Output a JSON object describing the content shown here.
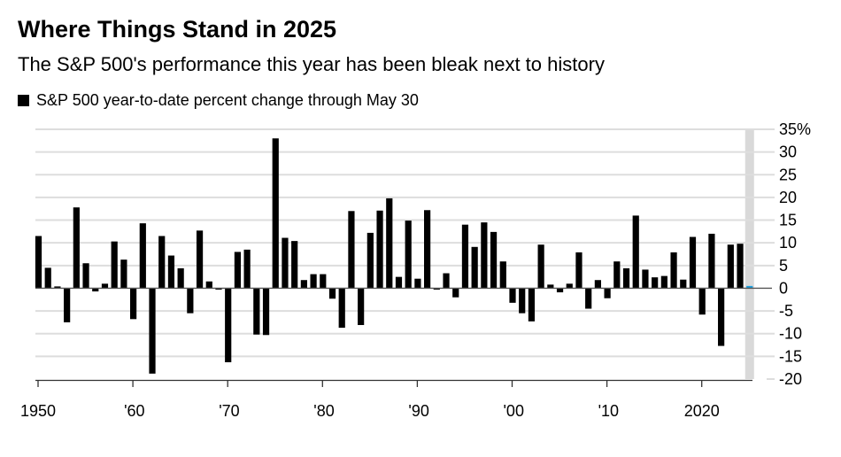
{
  "chart_data": {
    "type": "bar",
    "title": "Where Things Stand in 2025",
    "subtitle": "The S&P 500's performance this year has been bleak next to history",
    "legend": [
      {
        "label": "S&P 500 year-to-date percent change through May 30",
        "color": "#000000"
      }
    ],
    "legend_placement": "top-left",
    "xlabel": "",
    "ylabel": "",
    "ylim": [
      -20,
      35
    ],
    "grid": true,
    "y_ticks": [
      35,
      30,
      25,
      20,
      15,
      10,
      5,
      0,
      -5,
      -10,
      -15,
      -20
    ],
    "y_tick_labels": [
      "35%",
      "30",
      "25",
      "20",
      "15",
      "10",
      "5",
      "0",
      "-5",
      "-10",
      "-15",
      "-20"
    ],
    "x_ticks": [
      1950,
      1960,
      1970,
      1980,
      1990,
      2000,
      2010,
      2020
    ],
    "x_tick_labels": [
      "1950",
      "'60",
      "'70",
      "'80",
      "'90",
      "'00",
      "'10",
      "2020"
    ],
    "highlight": {
      "year": 2025,
      "color": "#1a9fe0",
      "band_color": "#d9d9d9"
    },
    "bar_color": "#000000",
    "years": [
      1950,
      1951,
      1952,
      1953,
      1954,
      1955,
      1956,
      1957,
      1958,
      1959,
      1960,
      1961,
      1962,
      1963,
      1964,
      1965,
      1966,
      1967,
      1968,
      1969,
      1970,
      1971,
      1972,
      1973,
      1974,
      1975,
      1976,
      1977,
      1978,
      1979,
      1980,
      1981,
      1982,
      1983,
      1984,
      1985,
      1986,
      1987,
      1988,
      1989,
      1990,
      1991,
      1992,
      1993,
      1994,
      1995,
      1996,
      1997,
      1998,
      1999,
      2000,
      2001,
      2002,
      2003,
      2004,
      2005,
      2006,
      2007,
      2008,
      2009,
      2010,
      2011,
      2012,
      2013,
      2014,
      2015,
      2016,
      2017,
      2018,
      2019,
      2020,
      2021,
      2022,
      2023,
      2024,
      2025
    ],
    "values": [
      11.5,
      4.5,
      0.4,
      -7.5,
      17.8,
      5.5,
      -0.7,
      1.0,
      10.3,
      6.3,
      -6.8,
      14.3,
      -18.8,
      11.5,
      7.2,
      4.4,
      -5.5,
      12.7,
      1.5,
      -0.3,
      -16.3,
      8.0,
      8.5,
      -10.2,
      -10.3,
      33.0,
      11.1,
      10.4,
      1.8,
      3.1,
      3.1,
      -2.3,
      -8.7,
      17.0,
      -8.1,
      12.2,
      17.1,
      19.8,
      2.5,
      14.9,
      2.1,
      17.2,
      -0.3,
      3.3,
      -2.0,
      14.0,
      9.1,
      14.5,
      12.4,
      5.9,
      -3.2,
      -5.5,
      -7.3,
      9.6,
      0.8,
      -0.9,
      1.0,
      7.9,
      -4.5,
      1.8,
      -2.2,
      5.9,
      4.4,
      16.0,
      4.1,
      2.4,
      2.7,
      7.9,
      1.9,
      11.3,
      -5.8,
      12.0,
      -12.7,
      9.6,
      9.8,
      0.5
    ]
  }
}
